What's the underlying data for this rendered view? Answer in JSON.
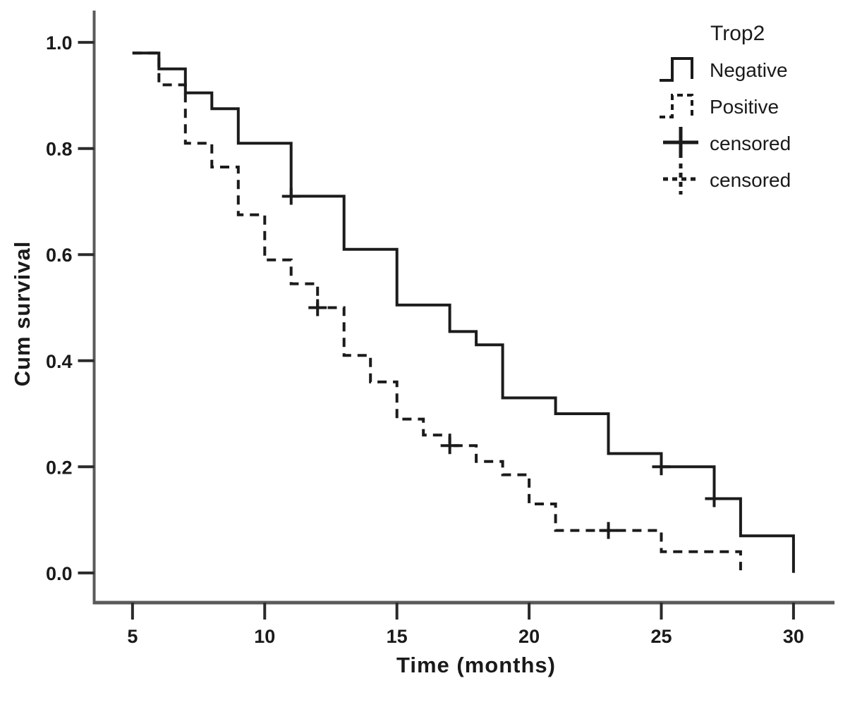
{
  "figure": {
    "background": "#ffffff"
  },
  "colors": {
    "curve": "#1b1b1b",
    "axis_line": "#5a5a5a",
    "tick_mark": "#2a2a2a",
    "text": "#1a1a1a"
  },
  "chart_data": {
    "type": "line",
    "subtype": "kaplan_meier_step",
    "title": "",
    "xlabel": "Time (months)",
    "ylabel": "Cum survival",
    "xlim": [
      3.55,
      31.55
    ],
    "ylim": [
      -0.056,
      1.06
    ],
    "grid": false,
    "legend_position": "top-right",
    "xticks": [
      {
        "value": 5,
        "label": "5"
      },
      {
        "value": 10,
        "label": "10"
      },
      {
        "value": 15,
        "label": "15"
      },
      {
        "value": 20,
        "label": "20"
      },
      {
        "value": 25,
        "label": "25"
      },
      {
        "value": 30,
        "label": "30"
      }
    ],
    "yticks": [
      {
        "value": 0.0,
        "label": "0.0"
      },
      {
        "value": 0.2,
        "label": "0.2"
      },
      {
        "value": 0.4,
        "label": "0.4"
      },
      {
        "value": 0.6,
        "label": "0.6"
      },
      {
        "value": 0.8,
        "label": "0.8"
      },
      {
        "value": 1.0,
        "label": "1.0"
      }
    ],
    "legend": {
      "title": "Trop2",
      "entries": [
        {
          "label": "Negative",
          "icon": "solid-step-line-icon"
        },
        {
          "label": "Positive",
          "icon": "dashed-step-line-icon"
        },
        {
          "label": "censored",
          "icon": "solid-plus-censored-icon"
        },
        {
          "label": "censored",
          "icon": "dashed-plus-censored-icon"
        }
      ]
    },
    "series": [
      {
        "name": "Negative",
        "line_style": "solid",
        "color": "#1b1b1b",
        "points": [
          [
            5,
            0.98
          ],
          [
            6,
            0.98
          ],
          [
            6,
            0.95
          ],
          [
            7,
            0.95
          ],
          [
            7,
            0.905
          ],
          [
            8,
            0.905
          ],
          [
            8,
            0.875
          ],
          [
            9,
            0.875
          ],
          [
            9,
            0.81
          ],
          [
            11,
            0.81
          ],
          [
            11,
            0.71
          ],
          [
            13,
            0.71
          ],
          [
            13,
            0.61
          ],
          [
            15,
            0.61
          ],
          [
            15,
            0.505
          ],
          [
            17,
            0.505
          ],
          [
            17,
            0.455
          ],
          [
            18,
            0.455
          ],
          [
            18,
            0.43
          ],
          [
            19,
            0.43
          ],
          [
            19,
            0.33
          ],
          [
            21,
            0.33
          ],
          [
            21,
            0.3
          ],
          [
            23,
            0.3
          ],
          [
            23,
            0.225
          ],
          [
            25,
            0.225
          ],
          [
            25,
            0.2
          ],
          [
            27,
            0.2
          ],
          [
            27,
            0.14
          ],
          [
            28,
            0.14
          ],
          [
            28,
            0.07
          ],
          [
            30,
            0.07
          ],
          [
            30,
            0.0
          ]
        ],
        "censored": [
          [
            11,
            0.71
          ],
          [
            25,
            0.2
          ],
          [
            27,
            0.14
          ]
        ]
      },
      {
        "name": "Positive",
        "line_style": "dashed",
        "color": "#1b1b1b",
        "points": [
          [
            5,
            0.98
          ],
          [
            6,
            0.98
          ],
          [
            6,
            0.92
          ],
          [
            7,
            0.92
          ],
          [
            7,
            0.81
          ],
          [
            8,
            0.81
          ],
          [
            8,
            0.765
          ],
          [
            9,
            0.765
          ],
          [
            9,
            0.675
          ],
          [
            10,
            0.675
          ],
          [
            10,
            0.59
          ],
          [
            11,
            0.59
          ],
          [
            11,
            0.545
          ],
          [
            12,
            0.545
          ],
          [
            12,
            0.5
          ],
          [
            13,
            0.5
          ],
          [
            13,
            0.41
          ],
          [
            14,
            0.41
          ],
          [
            14,
            0.36
          ],
          [
            15,
            0.36
          ],
          [
            15,
            0.29
          ],
          [
            16,
            0.29
          ],
          [
            16,
            0.26
          ],
          [
            17,
            0.26
          ],
          [
            17,
            0.24
          ],
          [
            18,
            0.24
          ],
          [
            18,
            0.21
          ],
          [
            19,
            0.21
          ],
          [
            19,
            0.185
          ],
          [
            20,
            0.185
          ],
          [
            20,
            0.13
          ],
          [
            21,
            0.13
          ],
          [
            21,
            0.08
          ],
          [
            25,
            0.08
          ],
          [
            25,
            0.04
          ],
          [
            28,
            0.04
          ],
          [
            28,
            0.005
          ]
        ],
        "censored": [
          [
            12,
            0.5
          ],
          [
            17,
            0.24
          ],
          [
            23,
            0.08
          ]
        ]
      }
    ]
  }
}
